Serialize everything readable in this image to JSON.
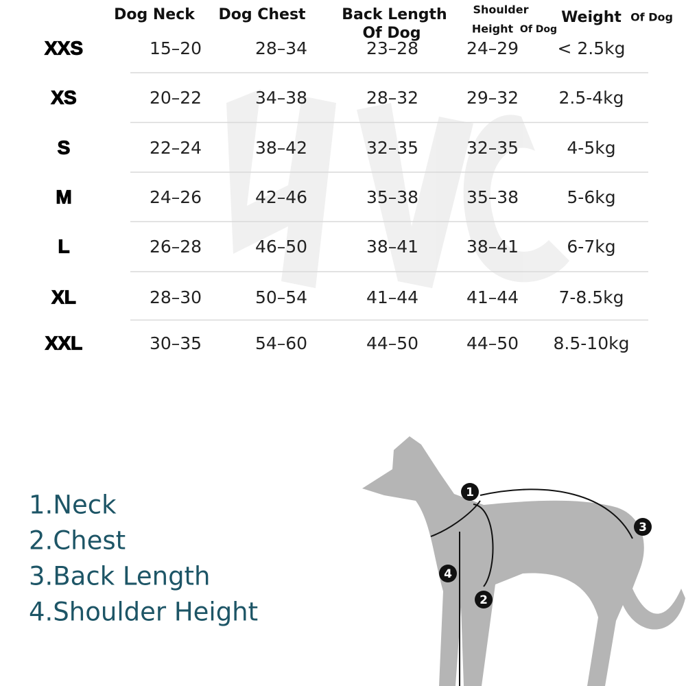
{
  "table": {
    "headers": [
      [
        "Dog Neck"
      ],
      [
        "Dog Chest"
      ],
      [
        "Back Length",
        "Of Dog"
      ],
      [
        "Shoulder",
        "Height",
        "Of Dog"
      ],
      [
        "Weight",
        "Of Dog"
      ]
    ],
    "rows": [
      [
        "XXS",
        "15–20",
        "28–34",
        "23–28",
        "24–29",
        "< 2.5kg"
      ],
      [
        "XS",
        "20–22",
        "34–38",
        "28–32",
        "29–32",
        "2.5-4kg"
      ],
      [
        "S",
        "22–24",
        "38–42",
        "32–35",
        "32–35",
        "4-5kg"
      ],
      [
        "M",
        "24–26",
        "42–46",
        "35–38",
        "35–38",
        "5-6kg"
      ],
      [
        "L",
        "26–28",
        "46–50",
        "38–41",
        "38–41",
        "6-7kg"
      ],
      [
        "XL",
        "28–30",
        "50–54",
        "41–44",
        "41–44",
        "7-8.5kg"
      ],
      [
        "XXL",
        "30–35",
        "54–60",
        "44–50",
        "44–50",
        "8.5-10kg"
      ]
    ]
  },
  "legend": [
    "1.Neck",
    "2.Chest",
    "3.Back Length",
    "4.Shoulder Height"
  ],
  "diagram": {
    "markers": [
      "1",
      "2",
      "3",
      "4"
    ]
  }
}
